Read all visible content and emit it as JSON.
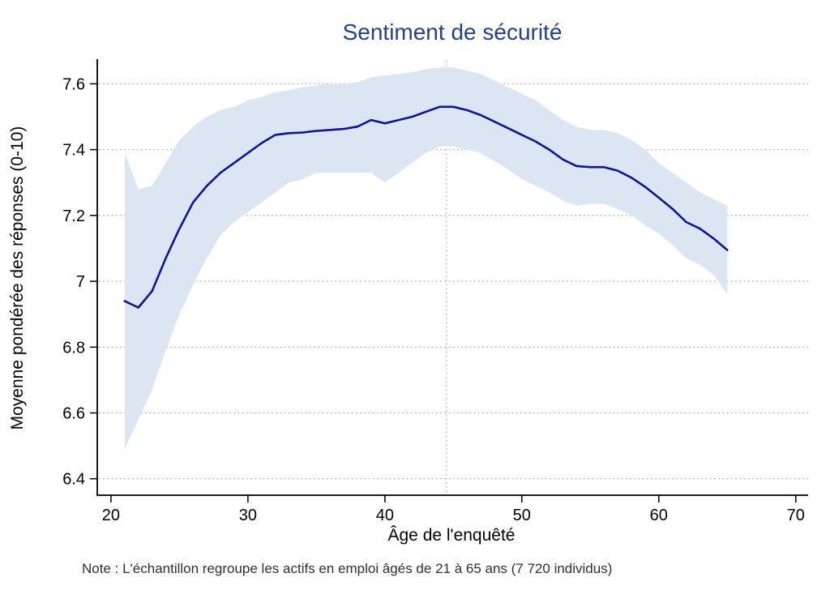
{
  "chart_data": {
    "type": "line",
    "title": "Sentiment de sécurité",
    "xlabel": "Âge de l'enquêté",
    "ylabel": "Moyenne pondérée des réponses (0-10)",
    "note": "Note : L'échantillon regroupe les actifs en emploi âgés de 21 à 65 ans (7 720 individus)",
    "x": [
      21,
      22,
      23,
      24,
      25,
      26,
      27,
      28,
      29,
      30,
      31,
      32,
      33,
      34,
      35,
      36,
      37,
      38,
      39,
      40,
      41,
      42,
      43,
      44,
      45,
      46,
      47,
      48,
      49,
      50,
      51,
      52,
      53,
      54,
      55,
      56,
      57,
      58,
      59,
      60,
      61,
      62,
      63,
      64,
      65
    ],
    "series": [
      {
        "name": "moyenne",
        "values": [
          6.94,
          6.92,
          6.97,
          7.07,
          7.16,
          7.24,
          7.29,
          7.33,
          7.36,
          7.39,
          7.42,
          7.445,
          7.45,
          7.452,
          7.457,
          7.46,
          7.463,
          7.47,
          7.49,
          7.48,
          7.49,
          7.5,
          7.515,
          7.53,
          7.53,
          7.52,
          7.505,
          7.485,
          7.465,
          7.445,
          7.425,
          7.4,
          7.37,
          7.35,
          7.347,
          7.347,
          7.336,
          7.315,
          7.287,
          7.254,
          7.22,
          7.18,
          7.16,
          7.13,
          7.095
        ]
      }
    ],
    "ci_low": [
      6.49,
      6.58,
      6.67,
      6.79,
      6.9,
      6.99,
      7.07,
      7.14,
      7.18,
      7.21,
      7.24,
      7.27,
      7.3,
      7.31,
      7.33,
      7.33,
      7.33,
      7.33,
      7.33,
      7.3,
      7.33,
      7.36,
      7.39,
      7.41,
      7.41,
      7.4,
      7.39,
      7.365,
      7.34,
      7.31,
      7.29,
      7.27,
      7.245,
      7.23,
      7.235,
      7.235,
      7.22,
      7.2,
      7.17,
      7.145,
      7.11,
      7.07,
      7.05,
      7.02,
      6.96
    ],
    "ci_high": [
      7.39,
      7.28,
      7.29,
      7.36,
      7.43,
      7.47,
      7.5,
      7.52,
      7.53,
      7.55,
      7.56,
      7.575,
      7.58,
      7.59,
      7.595,
      7.6,
      7.6,
      7.605,
      7.62,
      7.625,
      7.63,
      7.635,
      7.645,
      7.65,
      7.65,
      7.64,
      7.63,
      7.61,
      7.59,
      7.57,
      7.55,
      7.52,
      7.49,
      7.47,
      7.46,
      7.46,
      7.45,
      7.43,
      7.4,
      7.36,
      7.33,
      7.3,
      7.27,
      7.25,
      7.23
    ],
    "x_ticks": [
      20,
      30,
      40,
      50,
      60,
      70
    ],
    "y_ticks": [
      6.4,
      6.6,
      6.8,
      7,
      7.2,
      7.4,
      7.6
    ],
    "y_tick_labels": [
      "6.4",
      "6.6",
      "6.8",
      "7",
      "7.2",
      "7.4",
      "7.6"
    ],
    "xlim": [
      19,
      70.9
    ],
    "ylim": [
      6.35,
      7.67
    ],
    "vline_x": 44.5,
    "grid": "dotted-horizontal",
    "legend": "none",
    "colors": {
      "line": "#12129a",
      "band": "#dce6f3",
      "title": "#21418d",
      "grid": "#9e9e9e",
      "axis": "#000000",
      "note": "#303030"
    }
  }
}
